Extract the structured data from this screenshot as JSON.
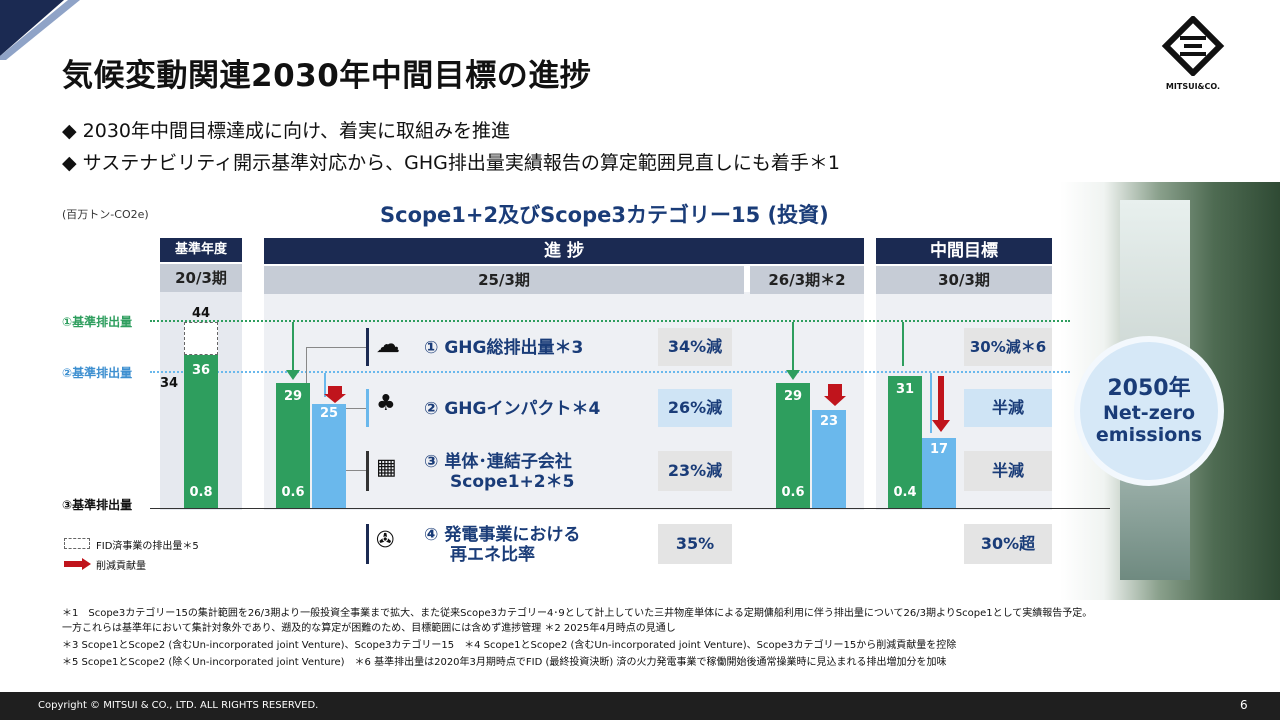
{
  "title": "気候変動関連2030年中間目標の進捗",
  "bullets": [
    "◆ 2030年中間目標達成に向け、着実に取組みを推進",
    "◆ サステナビリティ開示基準対応から、GHG排出量実績報告の算定範囲見直しにも着手＊1"
  ],
  "logo_text": "MITSUI&CO.",
  "unit": "(百万トン-CO2e)",
  "chart_title": "Scope1+2及びScope3カテゴリー15 (投資)",
  "headers": {
    "base_year": "基準年度",
    "base_period": "20/3期",
    "progress": "進 捗",
    "period_25": "25/3期",
    "period_26": "26/3期＊2",
    "target": "中間目標",
    "period_30": "30/3期"
  },
  "baselines": [
    "①基準排出量",
    "②基準排出量",
    "③基準排出量"
  ],
  "bars": {
    "base_total": "44",
    "base_side": "34",
    "base_green": "36",
    "base_small": "0.8",
    "y25_green": "29",
    "y25_blue": "25",
    "y25_small": "0.6",
    "y26_green": "29",
    "y26_blue": "23",
    "y26_small": "0.6",
    "y30_green": "31",
    "y30_blue": "17",
    "y30_small": "0.4"
  },
  "rows": [
    {
      "num": "①",
      "label": "GHG総排出量＊3",
      "value": "34%減",
      "target": "30%減＊6",
      "icon": "co2-cloud-icon"
    },
    {
      "num": "②",
      "label": "GHGインパクト＊4",
      "value": "26%減",
      "target": "半減",
      "icon": "forest-icon"
    },
    {
      "num": "③",
      "label": "単体･連結子会社",
      "label2": "Scope1+2＊5",
      "value": "23%減",
      "target": "半減",
      "icon": "building-icon"
    },
    {
      "num": "④",
      "label": "発電事業における",
      "label2": "再エネ比率",
      "value": "35%",
      "target": "30%超",
      "icon": "renewables-icon"
    }
  ],
  "goal": {
    "line1": "2050年",
    "line2": "Net-zero",
    "line3": "emissions"
  },
  "legend": {
    "fid": "FID済事業の排出量＊5",
    "reduction": "削減貢献量"
  },
  "footnotes": [
    "＊1　Scope3カテゴリー15の集計範囲を26/3期より一般投資全事業まで拡大、また従来Scope3カテゴリー4･9として計上していた三井物産単体による定期傭船利用に伴う排出量について26/3期よりScope1として実績報告予定。",
    "一方これらは基準年において集計対象外であり、遡及的な算定が困難のため、目標範囲には含めず進捗管理 ＊2 2025年4月時点の見通し",
    "＊3 Scope1とScope2 (含むUn-incorporated joint Venture)、Scope3カテゴリー15　＊4 Scope1とScope2 (含むUn-incorporated joint Venture)、Scope3カテゴリー15から削減貢献量を控除",
    "＊5 Scope1とScope2 (除くUn-incorporated joint Venture)　＊6 基準排出量は2020年3月期時点でFID (最終投資決断) 済の火力発電事業で稼働開始後通常操業時に見込まれる排出増加分を加味"
  ],
  "copyright": "Copyright © MITSUI & CO., LTD. ALL RIGHTS RESERVED.",
  "page_number": "6",
  "colors": {
    "navy": "#1b2a52",
    "green": "#2e9e5e",
    "blue": "#6ab8ec",
    "red": "#c0141c",
    "text_blue": "#1a3c78"
  }
}
